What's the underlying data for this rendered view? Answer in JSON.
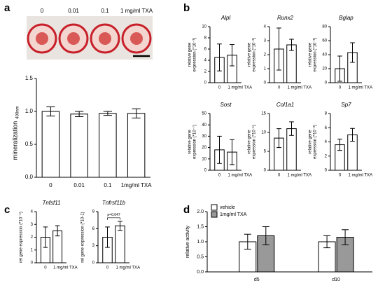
{
  "panel_labels": [
    "a",
    "b",
    "c",
    "d"
  ],
  "chart_data": [
    {
      "type": "bar",
      "image_labels": [
        "0",
        "0.01",
        "0.1",
        "1 mg/ml TXA"
      ],
      "y_label": "mineralization",
      "y_label_sub": "400nm",
      "categories": [
        "0",
        "0.01",
        "0.1",
        "1mg/ml TXA"
      ],
      "values": [
        1.0,
        0.96,
        0.97,
        0.97
      ],
      "errors": [
        0.07,
        0.04,
        0.03,
        0.07
      ],
      "color": "#ffffff",
      "ylim": [
        0,
        1.5
      ],
      "yticks": [
        {
          "value": 0,
          "label": "0.0"
        },
        {
          "value": 0.5,
          "label": "0.5"
        },
        {
          "value": 1,
          "label": "1.0"
        },
        {
          "value": 1.5,
          "label": "1.5"
        }
      ]
    },
    {
      "type": "bar",
      "title": "Alpl",
      "y_label": [
        "relative gene",
        "expression (*10⁻³)"
      ],
      "categories": [
        "0",
        "1 mg/ml TXA"
      ],
      "values": [
        4.5,
        4.9
      ],
      "errors": [
        2.4,
        1.9
      ],
      "color": "#ffffff",
      "ylim": [
        0,
        10
      ],
      "yticks": [
        0,
        2,
        4,
        6,
        8,
        10
      ]
    },
    {
      "type": "bar",
      "title": "Runx2",
      "y_label": [
        "relative gene",
        "expression (*10⁻²)"
      ],
      "categories": [
        "0",
        "1 mg/ml TXA"
      ],
      "values": [
        2.4,
        2.7
      ],
      "errors": [
        1.5,
        0.4
      ],
      "color": "#ffffff",
      "ylim": [
        0,
        4
      ],
      "yticks": [
        0,
        1,
        2,
        3,
        4
      ]
    },
    {
      "type": "bar",
      "title": "Bglap",
      "y_label": [
        "relative gene",
        "expression (*10⁻³)"
      ],
      "categories": [
        "0",
        "1 mg/ml TXA"
      ],
      "values": [
        20,
        43
      ],
      "errors": [
        18,
        14
      ],
      "color": "#ffffff",
      "ylim": [
        0,
        80
      ],
      "yticks": [
        0,
        20,
        40,
        60,
        80
      ]
    },
    {
      "type": "bar",
      "title": "Sost",
      "y_label": [
        "relative gene",
        "expression (*10⁻⁷)"
      ],
      "categories": [
        "0",
        "1 mg/ml TXA"
      ],
      "values": [
        18,
        16
      ],
      "errors": [
        12,
        11
      ],
      "color": "#ffffff",
      "ylim": [
        0,
        50
      ],
      "yticks": [
        0,
        10,
        20,
        30,
        40,
        50
      ]
    },
    {
      "type": "bar",
      "title": "Col1a1",
      "y_label": [
        "relative gene",
        "expression (*10⁻¹)"
      ],
      "categories": [
        "0",
        "1 mg/ml TXA"
      ],
      "values": [
        8.5,
        11
      ],
      "errors": [
        2.5,
        1.8
      ],
      "color": "#ffffff",
      "ylim": [
        0,
        15
      ],
      "yticks": [
        0,
        5,
        10,
        15
      ]
    },
    {
      "type": "bar",
      "title": "Sp7",
      "y_label": [
        "relative gene",
        "expression (*10⁻³)"
      ],
      "categories": [
        "0",
        "1 mg/ml TXA"
      ],
      "values": [
        3.6,
        5
      ],
      "errors": [
        0.8,
        0.9
      ],
      "color": "#ffffff",
      "ylim": [
        0,
        8
      ],
      "yticks": [
        0,
        2,
        4,
        6,
        8
      ]
    },
    {
      "type": "bar",
      "title": "Tnfsf11",
      "y_label": [
        "rel gene expression (*10⁻⁵)"
      ],
      "categories": [
        "0",
        "1 mg/ml TXA"
      ],
      "values": [
        2.0,
        2.5
      ],
      "errors": [
        0.8,
        0.4
      ],
      "color": "#ffffff",
      "ylim": [
        0,
        4
      ],
      "yticks": [
        0,
        1,
        2,
        3,
        4
      ]
    },
    {
      "type": "bar",
      "title": "Tnfrsf11b",
      "y_label": [
        "rel gene expression (*10-1)"
      ],
      "categories": [
        "0",
        "1 mg/ml TXA"
      ],
      "values": [
        4.5,
        6.5
      ],
      "errors": [
        1.8,
        0.8
      ],
      "color": "#ffffff",
      "ylim": [
        0,
        9
      ],
      "yticks": [
        0,
        3,
        6,
        9
      ],
      "annotation": "p=0.047"
    },
    {
      "type": "grouped_bar",
      "y_label": [
        "relative activity"
      ],
      "categories": [
        "d5",
        "d10"
      ],
      "legend": "top-left",
      "series": [
        {
          "name": "vehicle",
          "color": "#ffffff",
          "values": [
            1.0,
            1.0
          ],
          "errors": [
            0.25,
            0.2
          ]
        },
        {
          "name": "1mg/ml TXA",
          "color": "#999999",
          "values": [
            1.2,
            1.15
          ],
          "errors": [
            0.3,
            0.25
          ]
        }
      ],
      "ylim": [
        0,
        2
      ],
      "yticks": [
        {
          "value": 0,
          "label": "0.0"
        },
        {
          "value": 0.5,
          "label": "0.5"
        },
        {
          "value": 1,
          "label": "1.0"
        },
        {
          "value": 1.5,
          "label": "1.5"
        },
        {
          "value": 2,
          "label": "2.0"
        }
      ]
    }
  ]
}
